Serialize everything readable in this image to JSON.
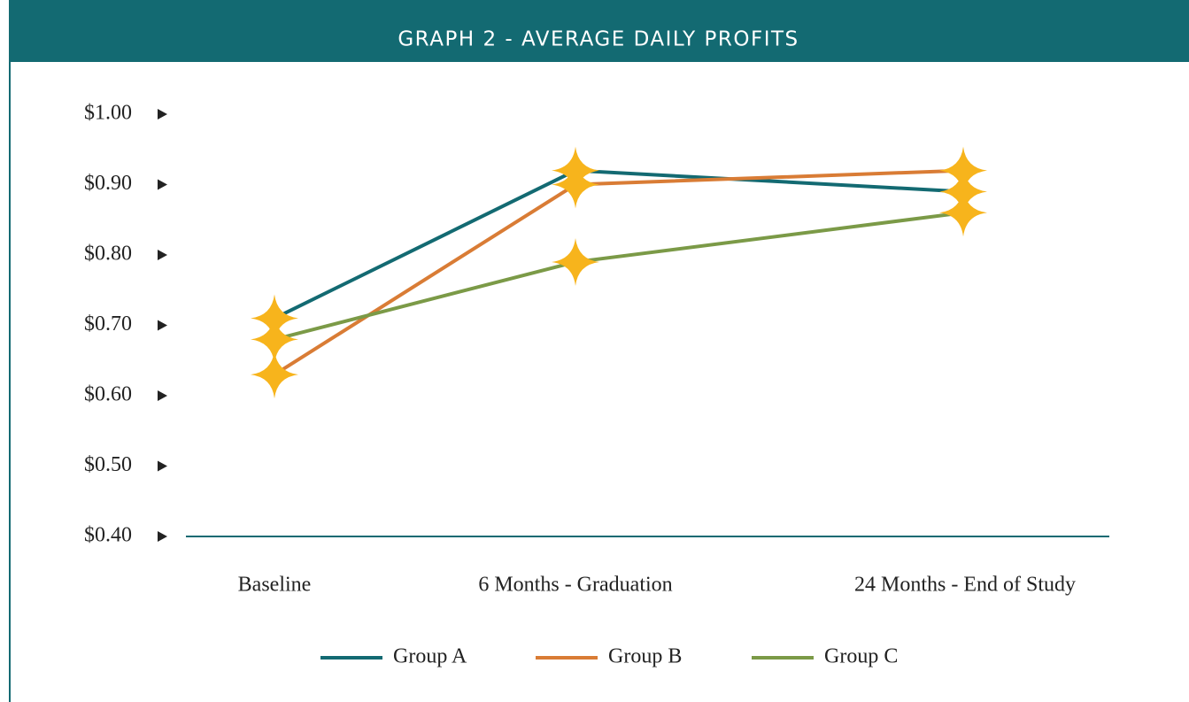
{
  "chart_data": {
    "type": "line",
    "title": "GRAPH 2 - AVERAGE DAILY PROFITS",
    "categories": [
      "Baseline",
      "6 Months - Graduation",
      "24 Months - End of Study"
    ],
    "series": [
      {
        "name": "Group A",
        "color": "#136a72",
        "values": [
          0.71,
          0.92,
          0.89
        ]
      },
      {
        "name": "Group B",
        "color": "#d97c35",
        "values": [
          0.63,
          0.9,
          0.92
        ]
      },
      {
        "name": "Group C",
        "color": "#7b9a47",
        "values": [
          0.68,
          0.79,
          0.86
        ]
      }
    ],
    "marker_color": "#f7b41c",
    "ylim": [
      0.4,
      1.0
    ],
    "yticks": [
      {
        "value": 0.4,
        "label": "$0.40"
      },
      {
        "value": 0.5,
        "label": "$0.50"
      },
      {
        "value": 0.6,
        "label": "$0.60"
      },
      {
        "value": 0.7,
        "label": "$0.70"
      },
      {
        "value": 0.8,
        "label": "$0.80"
      },
      {
        "value": 0.9,
        "label": "$0.90"
      },
      {
        "value": 1.0,
        "label": "$1.00"
      }
    ]
  }
}
